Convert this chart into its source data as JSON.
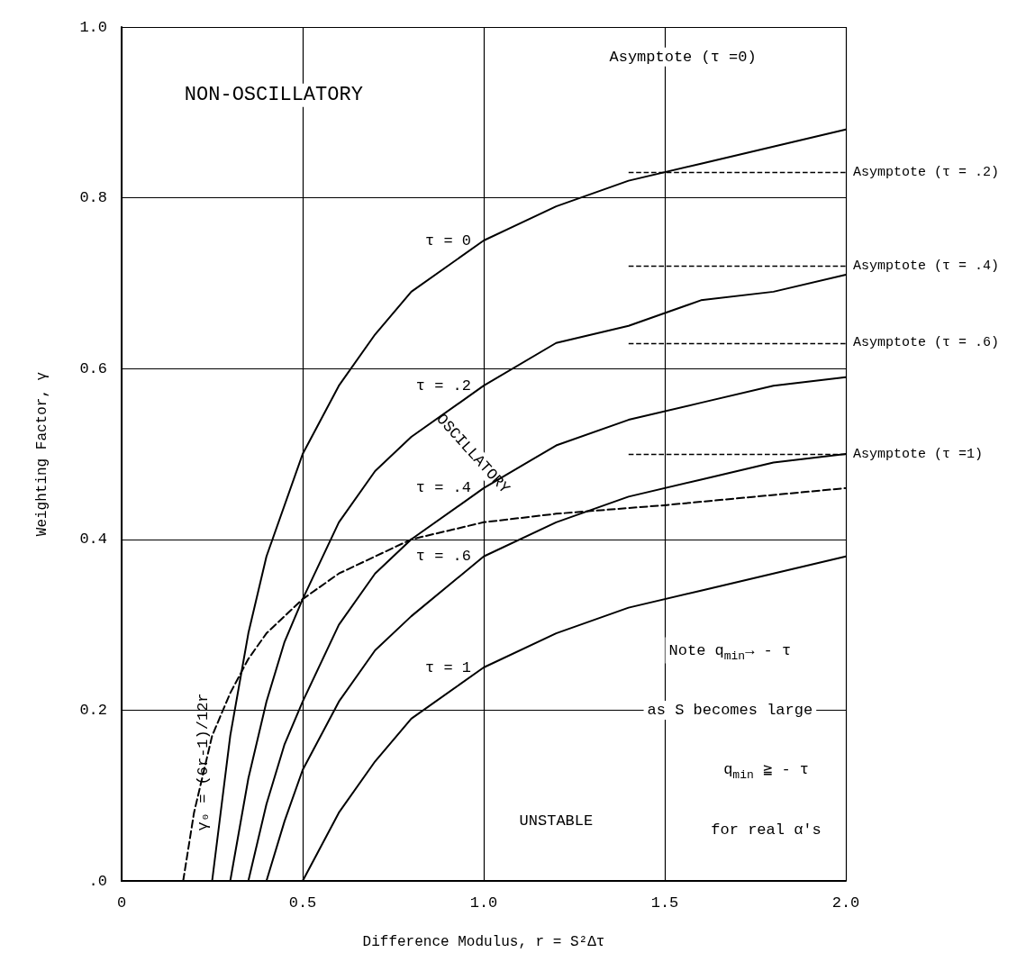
{
  "chart_data": {
    "type": "line",
    "xlabel": "Difference Modulus, r = S²Δτ",
    "ylabel": "Weighting Factor, γ",
    "xlim": [
      0,
      2
    ],
    "xticks": [
      0,
      0.5,
      {
        "value": 1,
        "label": "1.0"
      },
      1.5,
      {
        "value": 2,
        "label": "2.0"
      }
    ],
    "ylim": [
      0,
      1
    ],
    "yticks": [
      {
        "value": 0,
        "label": ".0"
      },
      0.2,
      0.4,
      0.6,
      0.8,
      {
        "value": 1,
        "label": "1.0"
      }
    ],
    "grid": true,
    "legend": false,
    "marker": "none",
    "series": [
      {
        "name": "τ = 0",
        "color": "#000000",
        "x": [
          0.25,
          0.3,
          0.35,
          0.4,
          0.5,
          0.6,
          0.7,
          0.8,
          1.0,
          1.2,
          1.4,
          1.6,
          1.8,
          2.0
        ],
        "values": [
          0,
          0.17,
          0.29,
          0.38,
          0.5,
          0.58,
          0.64,
          0.69,
          0.75,
          0.79,
          0.82,
          0.84,
          0.86,
          0.88
        ]
      },
      {
        "name": "τ = .2",
        "color": "#000000",
        "x": [
          0.3,
          0.35,
          0.4,
          0.45,
          0.5,
          0.6,
          0.7,
          0.8,
          1.0,
          1.2,
          1.4,
          1.6,
          1.8,
          2.0
        ],
        "values": [
          0,
          0.12,
          0.21,
          0.28,
          0.33,
          0.42,
          0.48,
          0.52,
          0.58,
          0.63,
          0.65,
          0.68,
          0.69,
          0.71
        ]
      },
      {
        "name": "τ = .4",
        "color": "#000000",
        "x": [
          0.35,
          0.4,
          0.45,
          0.5,
          0.6,
          0.7,
          0.8,
          1.0,
          1.2,
          1.4,
          1.6,
          1.8,
          2.0
        ],
        "values": [
          0,
          0.09,
          0.16,
          0.21,
          0.3,
          0.36,
          0.4,
          0.46,
          0.51,
          0.54,
          0.56,
          0.58,
          0.59
        ]
      },
      {
        "name": "τ = .6",
        "color": "#000000",
        "x": [
          0.4,
          0.45,
          0.5,
          0.6,
          0.7,
          0.8,
          1.0,
          1.2,
          1.4,
          1.6,
          1.8,
          2.0
        ],
        "values": [
          0,
          0.07,
          0.13,
          0.21,
          0.27,
          0.31,
          0.38,
          0.42,
          0.45,
          0.47,
          0.49,
          0.5
        ]
      },
      {
        "name": "τ = 1",
        "color": "#000000",
        "x": [
          0.5,
          0.6,
          0.7,
          0.8,
          1.0,
          1.2,
          1.4,
          1.6,
          1.8,
          2.0
        ],
        "values": [
          0,
          0.08,
          0.14,
          0.19,
          0.25,
          0.29,
          0.32,
          0.34,
          0.36,
          0.38
        ]
      },
      {
        "name": "γ₀ = (6r-1)/12r",
        "color": "#000000",
        "line_style": "dashed",
        "x": [
          0.17,
          0.2,
          0.25,
          0.3,
          0.35,
          0.4,
          0.5,
          0.6,
          0.8,
          1.0,
          1.2,
          1.5,
          2.0
        ],
        "values": [
          0,
          0.08,
          0.17,
          0.22,
          0.26,
          0.29,
          0.33,
          0.36,
          0.4,
          0.42,
          0.43,
          0.44,
          0.46
        ]
      }
    ],
    "ref_lines": [
      {
        "axis": "y",
        "value": 0.83,
        "label": "Asymptote (τ = .2)",
        "line_style": "dashed"
      },
      {
        "axis": "y",
        "value": 0.72,
        "label": "Asymptote (τ = .4)",
        "line_style": "dashed"
      },
      {
        "axis": "y",
        "value": 0.63,
        "label": "Asymptote (τ = .6)",
        "line_style": "dashed"
      },
      {
        "axis": "y",
        "value": 0.5,
        "label": "Asymptote (τ =1)",
        "line_style": "dashed"
      }
    ],
    "annotations": [
      "Asymptote (τ =0)",
      "NON-OSCILLATORY",
      "OSCILLATORY",
      "UNSTABLE",
      "Note q$_{min}$→ - τ",
      "as S becomes large",
      "q$_{min}$ ≧ - τ",
      "for real α's"
    ]
  }
}
